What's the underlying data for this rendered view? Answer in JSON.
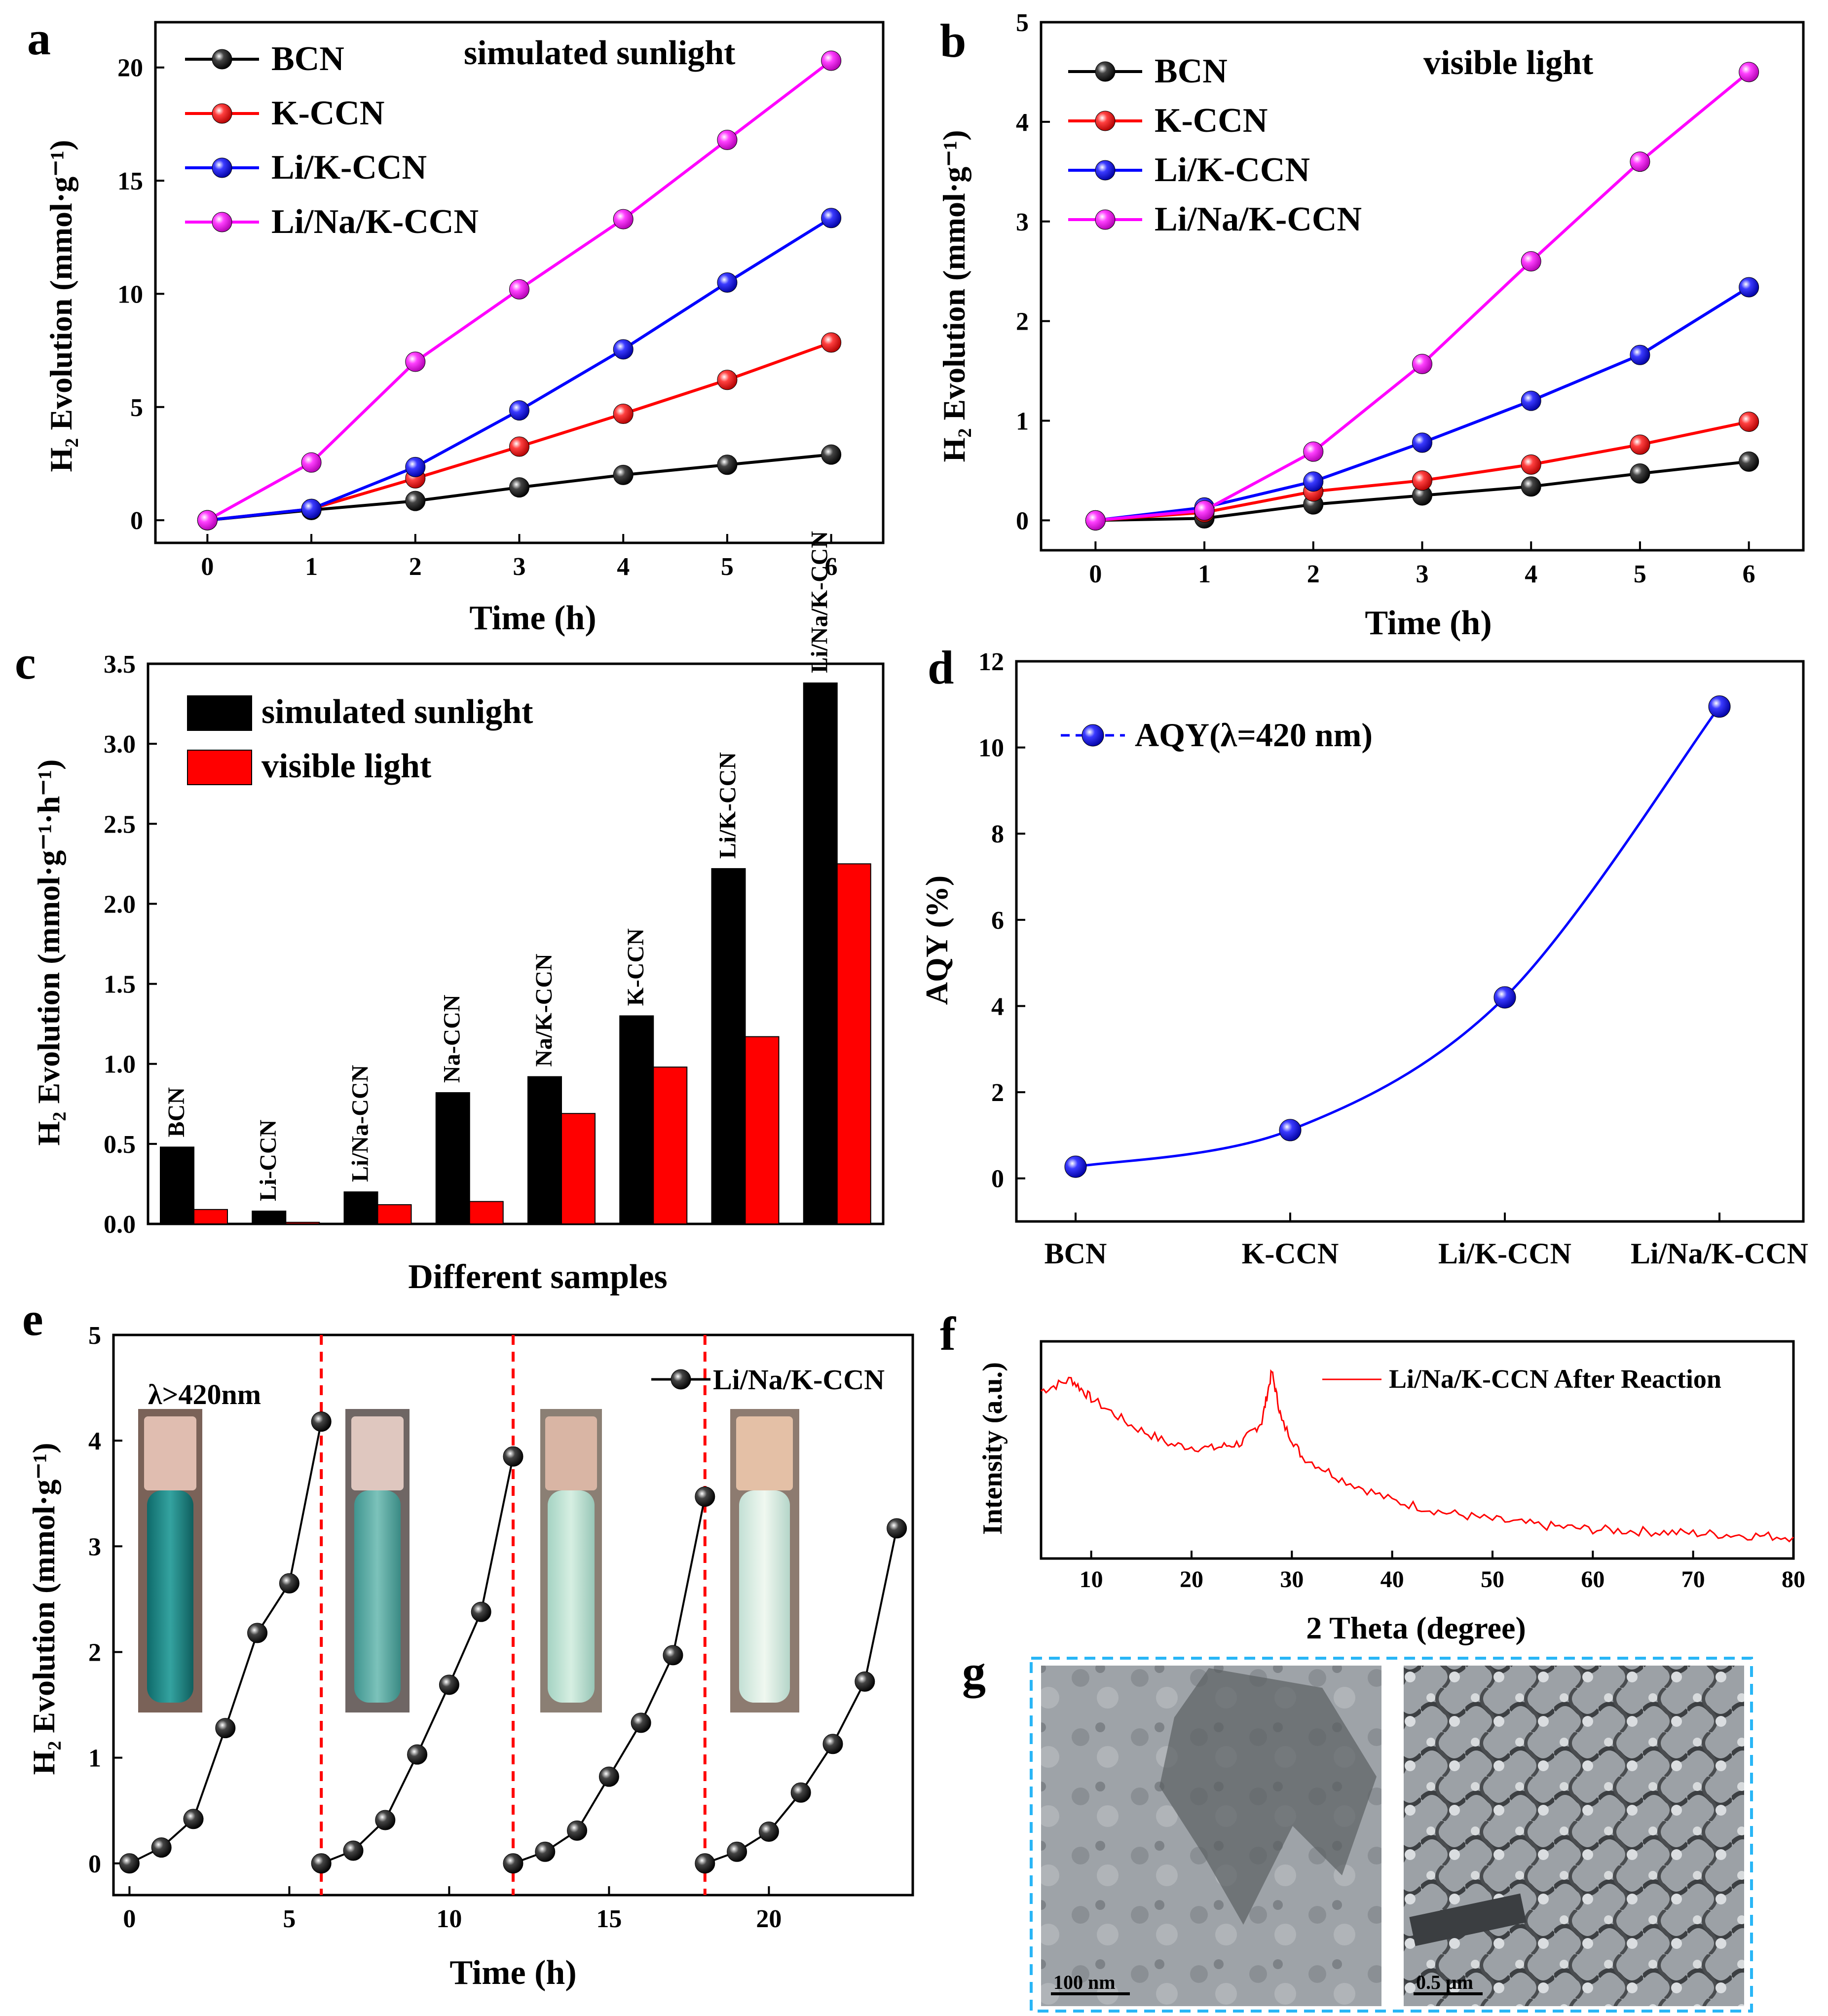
{
  "figure": {
    "panels": [
      {
        "id": "a",
        "letter": "a",
        "mode": "simulated sunlight",
        "xlabel": "Time (h)",
        "ylabel": "H₂ Evolution (mmol·g⁻¹)"
      },
      {
        "id": "b",
        "letter": "b",
        "mode": "visible light",
        "xlabel": "Time (h)",
        "ylabel": "H₂ Evolution (mmol·g⁻¹)"
      },
      {
        "id": "c",
        "letter": "c",
        "xlabel": "Different samples",
        "ylabel": "H₂ Evolution (mmol·g⁻¹·h⁻¹)"
      },
      {
        "id": "d",
        "letter": "d",
        "ylabel": "AQY (%)"
      },
      {
        "id": "e",
        "letter": "e",
        "xlabel": "Time (h)",
        "ylabel": "H₂ Evolution (mmol·g⁻¹)",
        "note": "λ>420nm"
      },
      {
        "id": "f",
        "letter": "f",
        "xlabel": "2 Theta (degree)",
        "ylabel": "Intensity (a.u.)"
      },
      {
        "id": "g",
        "letter": "g",
        "scale_bars": [
          "100 nm",
          "0.5 μm"
        ]
      }
    ]
  },
  "chart_data": [
    {
      "panel": "a",
      "type": "line",
      "title": "simulated sunlight",
      "xlabel": "Time (h)",
      "ylabel": "H₂ Evolution (mmol·g⁻¹)",
      "xlim": [
        -0.5,
        6.5
      ],
      "ylim": [
        -1,
        22
      ],
      "xticks": [
        0,
        1,
        2,
        3,
        4,
        5,
        6
      ],
      "yticks": [
        0,
        5,
        10,
        15,
        20
      ],
      "x": [
        0,
        1,
        2,
        3,
        4,
        5,
        6
      ],
      "series": [
        {
          "name": "BCN",
          "color": "#000000",
          "values": [
            0,
            0.45,
            0.85,
            1.45,
            2.0,
            2.45,
            2.9
          ]
        },
        {
          "name": "K-CCN",
          "color": "#ff0000",
          "values": [
            0,
            0.5,
            1.85,
            3.25,
            4.7,
            6.2,
            7.85
          ]
        },
        {
          "name": "Li/K-CCN",
          "color": "#0000ff",
          "values": [
            0,
            0.5,
            2.35,
            4.85,
            7.55,
            10.5,
            13.35
          ]
        },
        {
          "name": "Li/Na/K-CCN",
          "color": "#ff00ff",
          "values": [
            0,
            2.55,
            7.0,
            10.2,
            13.3,
            16.8,
            20.3
          ]
        }
      ],
      "legend": "top-left"
    },
    {
      "panel": "b",
      "type": "line",
      "title": "visible light",
      "xlabel": "Time (h)",
      "ylabel": "H₂ Evolution (mmol·g⁻¹)",
      "xlim": [
        -0.5,
        6.5
      ],
      "ylim": [
        -0.3,
        5
      ],
      "xticks": [
        0,
        1,
        2,
        3,
        4,
        5,
        6
      ],
      "yticks": [
        0,
        1,
        2,
        3,
        4,
        5
      ],
      "x": [
        0,
        1,
        2,
        3,
        4,
        5,
        6
      ],
      "series": [
        {
          "name": "BCN",
          "color": "#000000",
          "values": [
            0,
            0.02,
            0.16,
            0.25,
            0.34,
            0.47,
            0.59
          ]
        },
        {
          "name": "K-CCN",
          "color": "#ff0000",
          "values": [
            0,
            0.08,
            0.29,
            0.4,
            0.56,
            0.76,
            0.99
          ]
        },
        {
          "name": "Li/K-CCN",
          "color": "#0000ff",
          "values": [
            0,
            0.13,
            0.39,
            0.78,
            1.2,
            1.66,
            2.34
          ]
        },
        {
          "name": "Li/Na/K-CCN",
          "color": "#ff00ff",
          "values": [
            0,
            0.1,
            0.69,
            1.57,
            2.6,
            3.6,
            4.5
          ]
        }
      ],
      "legend": "top-left"
    },
    {
      "panel": "c",
      "type": "bar",
      "xlabel": "Different samples",
      "ylabel": "H₂ Evolution (mmol·g⁻¹·h⁻¹)",
      "ylim": [
        0,
        3.5
      ],
      "yticks": [
        0.0,
        0.5,
        1.0,
        1.5,
        2.0,
        2.5,
        3.0,
        3.5
      ],
      "categories": [
        "BCN",
        "Li-CCN",
        "Li/Na-CCN",
        "Na-CCN",
        "Na/K-CCN",
        "K-CCN",
        "Li/K-CCN",
        "Li/Na/K-CCN"
      ],
      "series": [
        {
          "name": "simulated sunlight",
          "color": "#000000",
          "values": [
            0.48,
            0.08,
            0.2,
            0.82,
            0.92,
            1.3,
            2.22,
            3.38
          ]
        },
        {
          "name": "visible light",
          "color": "#ff0000",
          "values": [
            0.09,
            0.01,
            0.12,
            0.14,
            0.69,
            0.98,
            1.17,
            2.25
          ]
        }
      ],
      "legend": "top-left"
    },
    {
      "panel": "d",
      "type": "line",
      "ylabel": "AQY (%)",
      "ylim": [
        -1,
        12
      ],
      "yticks": [
        0,
        2,
        4,
        6,
        8,
        10,
        12
      ],
      "categories": [
        "BCN",
        "K-CCN",
        "Li/K-CCN",
        "Li/Na/K-CCN"
      ],
      "series": [
        {
          "name": "AQY(λ=420 nm)",
          "color": "#0000ff",
          "values": [
            0.27,
            1.12,
            4.2,
            10.95
          ]
        }
      ],
      "legend": "top-left"
    },
    {
      "panel": "e",
      "type": "line",
      "xlabel": "Time (h)",
      "ylabel": "H₂ Evolution (mmol·g⁻¹)",
      "xlim": [
        -0.5,
        24.5
      ],
      "ylim": [
        -0.3,
        5
      ],
      "xticks": [
        0,
        5,
        10,
        15,
        20
      ],
      "yticks": [
        0,
        1,
        2,
        3,
        4,
        5
      ],
      "cycle_boundaries": [
        6,
        12,
        18
      ],
      "series": [
        {
          "name": "Li/Na/K-CCN",
          "color": "#000000",
          "cycles": [
            {
              "x": [
                0,
                1,
                2,
                3,
                4,
                5,
                6
              ],
              "values": [
                0,
                0.15,
                0.42,
                1.28,
                2.18,
                2.65,
                4.18
              ]
            },
            {
              "x": [
                6,
                7,
                8,
                9,
                10,
                11,
                12
              ],
              "values": [
                0,
                0.12,
                0.41,
                1.03,
                1.69,
                2.38,
                3.85
              ]
            },
            {
              "x": [
                12,
                13,
                14,
                15,
                16,
                17,
                18
              ],
              "values": [
                0,
                0.11,
                0.31,
                0.82,
                1.33,
                1.97,
                3.47
              ]
            },
            {
              "x": [
                18,
                19,
                20,
                21,
                22,
                23,
                24
              ],
              "values": [
                0,
                0.11,
                0.3,
                0.67,
                1.13,
                1.72,
                3.17
              ]
            }
          ]
        }
      ],
      "legend": "top-right"
    },
    {
      "panel": "f",
      "type": "line",
      "xlabel": "2 Theta (degree)",
      "ylabel": "Intensity (a.u.)",
      "xlim": [
        5,
        80
      ],
      "xticks": [
        10,
        20,
        30,
        40,
        50,
        60,
        70,
        80
      ],
      "series": [
        {
          "name": "Li/Na/K-CCN  After Reaction",
          "color": "#ff0000",
          "x": [
            5,
            8,
            10,
            14,
            18,
            22,
            25,
            27,
            28,
            29,
            31,
            35,
            40,
            45,
            50,
            55,
            60,
            65,
            70,
            75,
            80
          ],
          "values": [
            0.82,
            0.88,
            0.78,
            0.64,
            0.54,
            0.52,
            0.55,
            0.66,
            0.92,
            0.66,
            0.48,
            0.36,
            0.25,
            0.19,
            0.15,
            0.12,
            0.1,
            0.09,
            0.08,
            0.07,
            0.06
          ]
        }
      ],
      "legend": "top-right"
    }
  ]
}
